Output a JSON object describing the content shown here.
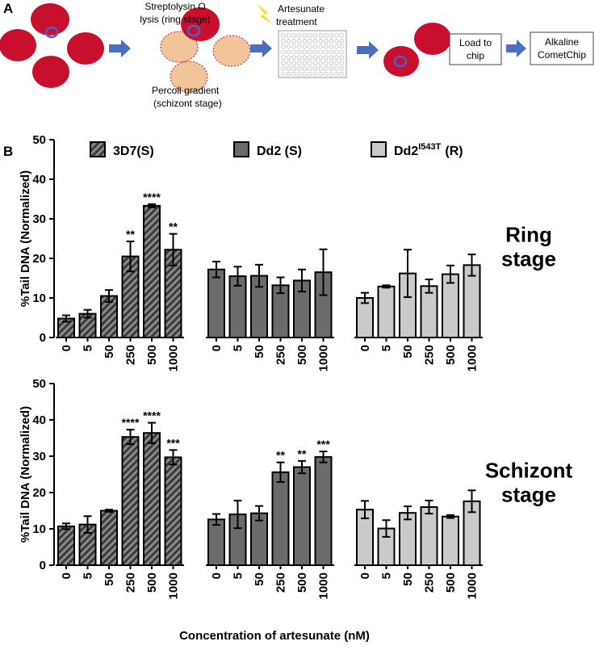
{
  "panel_labels": [
    "A",
    "B"
  ],
  "schematic": {
    "step1": [
      "Streptolysin O",
      "lysis (ring stage)"
    ],
    "step2": [
      "Percoll gradient",
      "(schizont stage)"
    ],
    "step3": [
      "Artesunate",
      "treatment"
    ],
    "step4": [
      "Load to",
      "chip"
    ],
    "step5": [
      "Alkaline",
      "CometChip"
    ]
  },
  "chart_data": [
    {
      "type": "bar",
      "ylabel": "%Tail DNA (Normalized)",
      "stage_label": [
        "Ring",
        "stage"
      ],
      "categories": [
        "0",
        "5",
        "50",
        "250",
        "500",
        "1000"
      ],
      "ylim": [
        0,
        50
      ],
      "yticks": [
        0,
        10,
        20,
        30,
        40,
        50
      ],
      "series": [
        {
          "name": "3D7(S)",
          "color": "#5a5a5a",
          "hatch": true,
          "values": [
            4.8,
            6.0,
            10.5,
            20.5,
            33.3,
            22.2
          ],
          "errors": [
            0.8,
            1.0,
            1.5,
            3.8,
            0.4,
            4.0
          ],
          "annotations": [
            null,
            null,
            null,
            "**",
            "****",
            "**"
          ]
        },
        {
          "name": "Dd2 (S)",
          "color": "#6b6b6b",
          "hatch": false,
          "values": [
            17.2,
            15.5,
            15.6,
            13.2,
            14.4,
            16.5
          ],
          "errors": [
            2.0,
            2.4,
            2.8,
            2.0,
            2.8,
            5.8
          ],
          "annotations": [
            null,
            null,
            null,
            null,
            null,
            null
          ]
        },
        {
          "name": "Dd2",
          "name_sup": "I543T",
          "name_suffix": "(R)",
          "color": "#cacaca",
          "hatch": false,
          "values": [
            10.0,
            12.9,
            16.2,
            13.0,
            16.0,
            18.3
          ],
          "errors": [
            1.3,
            0.3,
            6.0,
            1.7,
            2.2,
            2.7
          ],
          "annotations": [
            null,
            null,
            null,
            null,
            null,
            null
          ]
        }
      ]
    },
    {
      "type": "bar",
      "ylabel": "%Tail DNA (Normalized)",
      "stage_label": [
        "Schizont",
        "stage"
      ],
      "xlabel": "Concentration of artesunate (nM)",
      "categories": [
        "0",
        "5",
        "50",
        "250",
        "500",
        "1000"
      ],
      "ylim": [
        0,
        50
      ],
      "yticks": [
        0,
        10,
        20,
        30,
        40,
        50
      ],
      "series": [
        {
          "color": "#5a5a5a",
          "hatch": true,
          "values": [
            10.7,
            11.2,
            15.0,
            35.3,
            36.4,
            29.7
          ],
          "errors": [
            0.8,
            2.3,
            0.3,
            2.0,
            2.8,
            2.0
          ],
          "annotations": [
            null,
            null,
            null,
            "****",
            "****",
            "***"
          ]
        },
        {
          "color": "#6b6b6b",
          "hatch": false,
          "values": [
            12.6,
            14.0,
            14.3,
            25.6,
            27.0,
            29.8
          ],
          "errors": [
            1.5,
            3.8,
            2.0,
            2.7,
            1.7,
            1.5
          ],
          "annotations": [
            null,
            null,
            null,
            "**",
            "**",
            "***"
          ]
        },
        {
          "color": "#cacaca",
          "hatch": false,
          "values": [
            15.3,
            10.1,
            14.4,
            16.0,
            13.4,
            17.6
          ],
          "errors": [
            2.4,
            2.3,
            1.8,
            1.8,
            0.4,
            3.0
          ],
          "annotations": [
            null,
            null,
            null,
            null,
            null,
            null
          ]
        }
      ]
    }
  ]
}
